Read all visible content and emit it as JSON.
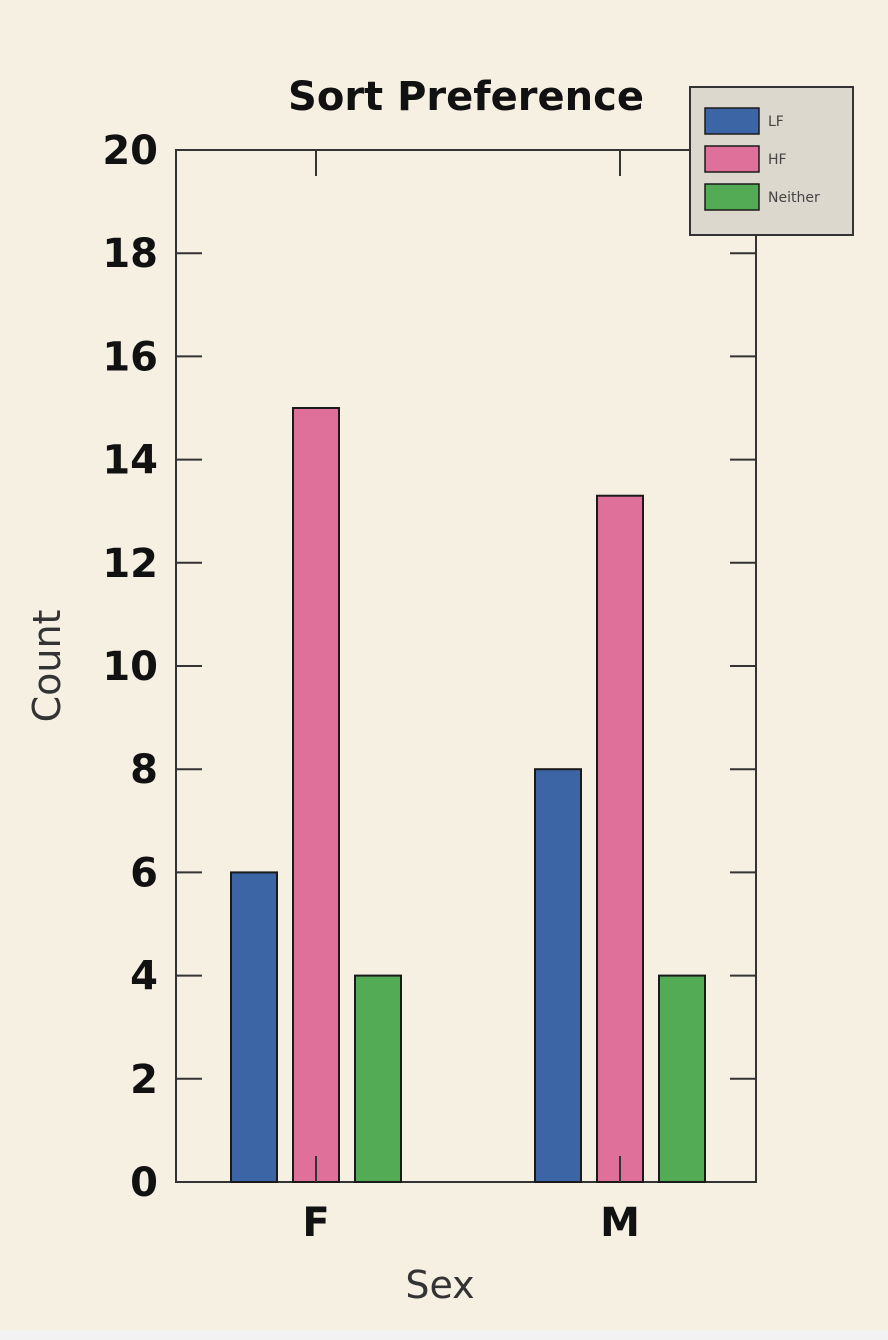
{
  "chart_data": {
    "type": "bar",
    "title": "Sort Preference",
    "xlabel": "Sex",
    "ylabel": "Count",
    "categories": [
      "F",
      "M"
    ],
    "series": [
      {
        "name": "LF",
        "values": [
          6,
          8
        ],
        "color": "#3b65a4"
      },
      {
        "name": "HF",
        "values": [
          15,
          13.3
        ],
        "color": "#de7099"
      },
      {
        "name": "Neither",
        "values": [
          4,
          4
        ],
        "color": "#53ab55"
      }
    ],
    "ylim": [
      0,
      20
    ],
    "yticks": [
      "0",
      "2",
      "4",
      "6",
      "8",
      "10",
      "12",
      "14",
      "16",
      "18",
      "20"
    ],
    "grid": false,
    "legend_position": "top-right"
  }
}
